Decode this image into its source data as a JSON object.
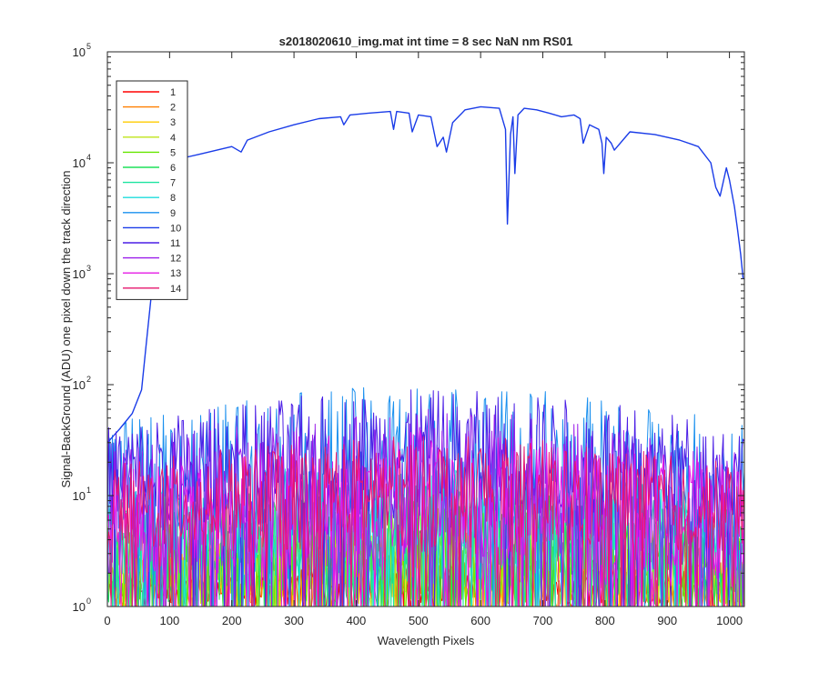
{
  "chart_data": {
    "type": "line",
    "title": "s2018020610_img.mat int time = 8 sec  NaN nm RS01",
    "xlabel": "Wavelength Pixels",
    "ylabel": "Signal-BackGround (ADU) one pixel down the track direction",
    "xlim": [
      0,
      1024
    ],
    "ylim": [
      1,
      100000
    ],
    "yscale": "log",
    "grid": false,
    "legend_location": "top-left",
    "x_ticks": [
      0,
      100,
      200,
      300,
      400,
      500,
      600,
      700,
      800,
      900,
      1000
    ],
    "y_ticks": [
      {
        "base": "10",
        "exp": "0",
        "value": 1
      },
      {
        "base": "10",
        "exp": "1",
        "value": 10
      },
      {
        "base": "10",
        "exp": "2",
        "value": 100
      },
      {
        "base": "10",
        "exp": "3",
        "value": 1000
      },
      {
        "base": "10",
        "exp": "4",
        "value": 10000
      },
      {
        "base": "10",
        "exp": "5",
        "value": 100000
      }
    ],
    "series": [
      {
        "name": "1",
        "color": "#ff0000",
        "noise": {
          "low": 1,
          "high": 2.5
        }
      },
      {
        "name": "2",
        "color": "#ff7f00",
        "noise": {
          "low": 1,
          "high": 4
        }
      },
      {
        "name": "3",
        "color": "#ffcc00",
        "noise": {
          "low": 1,
          "high": 5
        }
      },
      {
        "name": "4",
        "color": "#bfe41a",
        "noise": {
          "low": 1,
          "high": 8
        }
      },
      {
        "name": "5",
        "color": "#66e600",
        "noise": {
          "low": 1,
          "high": 10
        }
      },
      {
        "name": "6",
        "color": "#1ee05a",
        "noise": {
          "low": 1,
          "high": 12
        }
      },
      {
        "name": "7",
        "color": "#1de4a0",
        "noise": {
          "low": 1.5,
          "high": 15
        }
      },
      {
        "name": "8",
        "color": "#1edcdc",
        "noise": {
          "low": 2,
          "high": 20
        }
      },
      {
        "name": "9",
        "color": "#1a90ef",
        "noise": {
          "low": 4,
          "high": 100
        }
      },
      {
        "name": "10",
        "color": "#1a3ce8",
        "points": [
          [
            0,
            30
          ],
          [
            20,
            40
          ],
          [
            40,
            55
          ],
          [
            55,
            90
          ],
          [
            62,
            220
          ],
          [
            70,
            600
          ],
          [
            80,
            2000
          ],
          [
            90,
            5000
          ],
          [
            100,
            9000
          ],
          [
            120,
            11000
          ],
          [
            150,
            12000
          ],
          [
            200,
            14000
          ],
          [
            215,
            12500
          ],
          [
            225,
            16000
          ],
          [
            260,
            19000
          ],
          [
            300,
            22000
          ],
          [
            340,
            25000
          ],
          [
            375,
            26000
          ],
          [
            380,
            22000
          ],
          [
            390,
            27000
          ],
          [
            420,
            28000
          ],
          [
            455,
            29000
          ],
          [
            460,
            20000
          ],
          [
            465,
            29000
          ],
          [
            485,
            28000
          ],
          [
            490,
            19000
          ],
          [
            500,
            27000
          ],
          [
            520,
            26000
          ],
          [
            530,
            14000
          ],
          [
            540,
            17000
          ],
          [
            545,
            12500
          ],
          [
            555,
            23000
          ],
          [
            575,
            30000
          ],
          [
            600,
            32000
          ],
          [
            630,
            31000
          ],
          [
            640,
            20000
          ],
          [
            643,
            2800
          ],
          [
            648,
            18000
          ],
          [
            652,
            26000
          ],
          [
            655,
            8000
          ],
          [
            660,
            27000
          ],
          [
            670,
            31000
          ],
          [
            690,
            30000
          ],
          [
            710,
            28000
          ],
          [
            730,
            26000
          ],
          [
            750,
            27000
          ],
          [
            760,
            25000
          ],
          [
            765,
            15000
          ],
          [
            775,
            22000
          ],
          [
            790,
            20000
          ],
          [
            795,
            15000
          ],
          [
            798,
            8000
          ],
          [
            802,
            17000
          ],
          [
            810,
            15000
          ],
          [
            815,
            13000
          ],
          [
            840,
            19000
          ],
          [
            880,
            18000
          ],
          [
            920,
            16000
          ],
          [
            950,
            14000
          ],
          [
            970,
            10000
          ],
          [
            978,
            6000
          ],
          [
            985,
            5000
          ],
          [
            995,
            9000
          ],
          [
            1000,
            7000
          ],
          [
            1008,
            4000
          ],
          [
            1013,
            2500
          ],
          [
            1018,
            1500
          ],
          [
            1022,
            900
          ]
        ]
      },
      {
        "name": "11",
        "color": "#4b1ee6",
        "noise": {
          "low": 5,
          "high": 90
        }
      },
      {
        "name": "12",
        "color": "#9b1eea",
        "noise": {
          "low": 2,
          "high": 60
        }
      },
      {
        "name": "13",
        "color": "#e619e6",
        "noise": {
          "low": 1.5,
          "high": 40
        }
      },
      {
        "name": "14",
        "color": "#e6176e",
        "noise": {
          "low": 3,
          "high": 35
        }
      }
    ]
  }
}
